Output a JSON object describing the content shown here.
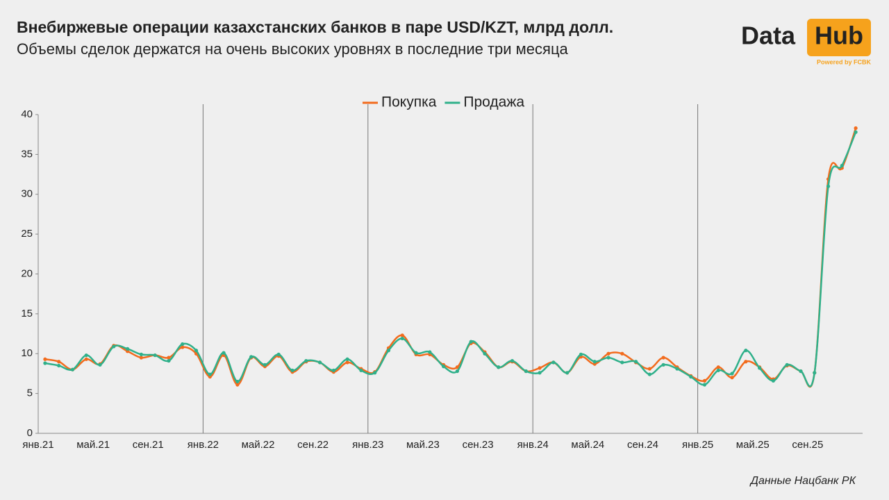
{
  "chart_data": {
    "type": "line",
    "title": "Внебиржевые операции казахстанских банков в паре USD/KZT, млрд долл.",
    "subtitle": "Объемы сделок держатся на очень высоких уровнях в последние три месяца",
    "logo_left": "Data",
    "logo_right": "Hub",
    "logo_caption": "Powered by FCBK",
    "source": "Данные Нацбанк РК",
    "categories": [
      "янв.21",
      null,
      null,
      null,
      "май.21",
      null,
      null,
      null,
      "сен.21",
      null,
      null,
      null,
      "янв.22",
      null,
      null,
      null,
      "май.22",
      null,
      null,
      null,
      "сен.22",
      null,
      null,
      null,
      "янв.23",
      null,
      null,
      null,
      "май.23",
      null,
      null,
      null,
      "сен.23",
      null,
      null,
      null,
      "янв.24",
      null,
      null,
      null,
      "май.24",
      null,
      null,
      null,
      "сен.24",
      null,
      null,
      null,
      "янв.25",
      null,
      null,
      null,
      "май.25",
      null,
      null,
      null,
      "сен.25",
      null,
      null,
      null
    ],
    "series": [
      {
        "name": "Покупка",
        "color": "#f26b1d",
        "values": [
          9.3,
          9.0,
          8.0,
          9.3,
          8.7,
          11.0,
          10.3,
          9.5,
          9.8,
          9.5,
          10.8,
          10.0,
          7.1,
          9.8,
          6.1,
          9.5,
          8.4,
          9.7,
          7.7,
          9.0,
          8.9,
          7.7,
          8.9,
          8.1,
          7.7,
          10.7,
          12.3,
          9.9,
          9.9,
          8.6,
          8.3,
          11.3,
          10.2,
          8.3,
          9.0,
          7.8,
          8.2,
          8.9,
          7.6,
          9.6,
          8.7,
          10.0,
          10.0,
          8.9,
          8.1,
          9.5,
          8.3,
          7.2,
          6.6,
          8.3,
          7.0,
          9.0,
          8.3,
          6.8,
          8.5,
          7.8,
          7.6,
          31.9,
          33.3,
          38.3
        ]
      },
      {
        "name": "Продажа",
        "color": "#2fb08a",
        "values": [
          8.8,
          8.5,
          8.0,
          9.8,
          8.6,
          10.9,
          10.6,
          9.9,
          9.8,
          9.1,
          11.2,
          10.4,
          7.4,
          10.1,
          6.5,
          9.6,
          8.6,
          9.9,
          7.9,
          9.1,
          8.9,
          7.9,
          9.3,
          7.9,
          7.6,
          10.4,
          11.9,
          10.1,
          10.2,
          8.4,
          7.8,
          11.5,
          10.0,
          8.3,
          9.1,
          7.8,
          7.6,
          8.9,
          7.6,
          9.9,
          9.0,
          9.5,
          8.9,
          9.0,
          7.4,
          8.6,
          8.1,
          7.1,
          6.1,
          7.9,
          7.5,
          10.4,
          8.2,
          6.6,
          8.6,
          7.8,
          7.6,
          31.0,
          33.6,
          37.8
        ]
      }
    ],
    "ylim": [
      0,
      40
    ],
    "yticks": [
      0,
      5,
      10,
      15,
      20,
      25,
      30,
      35,
      40
    ],
    "year_lines": true,
    "legend": "top"
  }
}
